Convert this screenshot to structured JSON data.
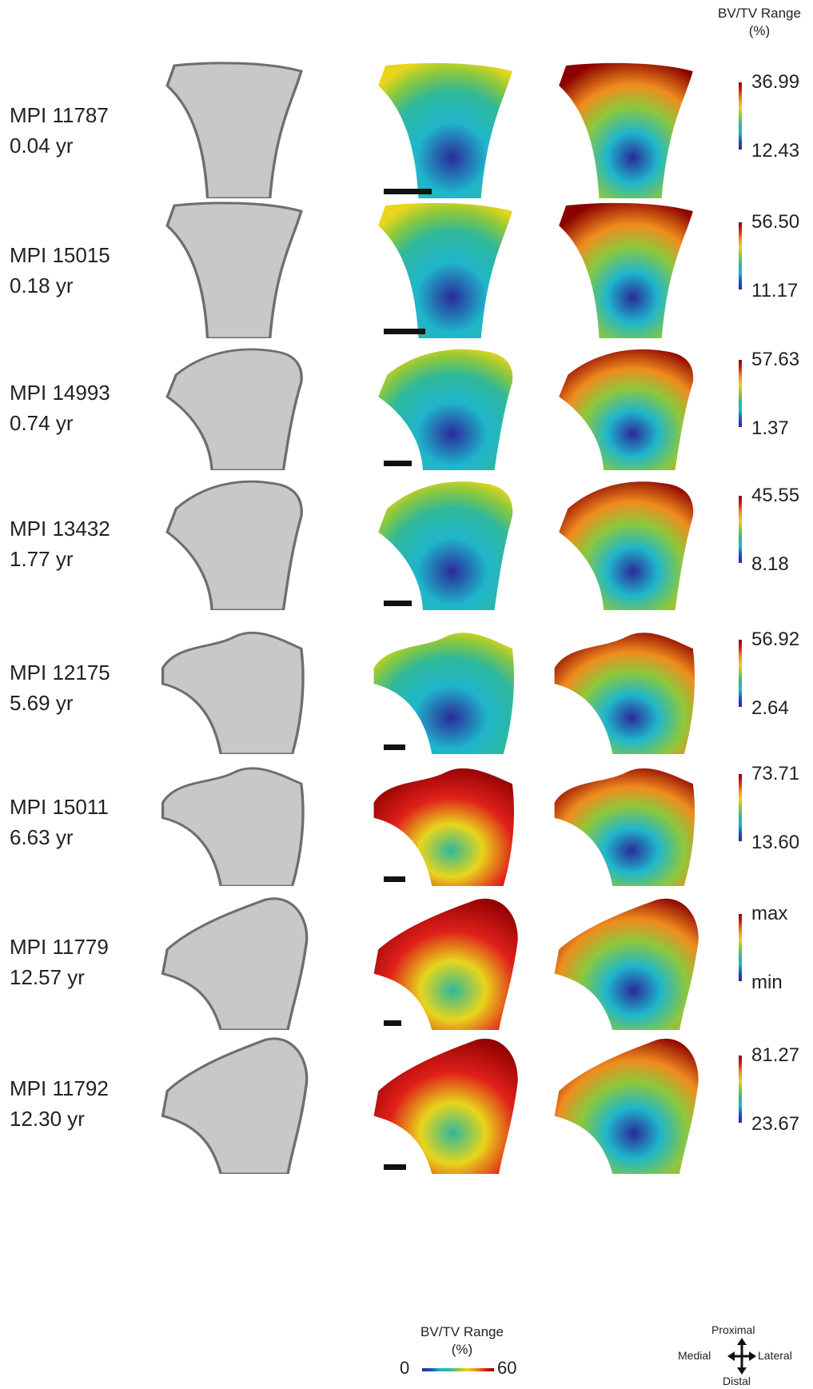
{
  "header": {
    "title_line1": "BV/TV Range",
    "title_line2": "(%)"
  },
  "rows": [
    {
      "specimen": "MPI 11787",
      "age": "0.04 yr",
      "max": "36.99",
      "min": "12.43"
    },
    {
      "specimen": "MPI 15015",
      "age": "0.18 yr",
      "max": "56.50",
      "min": "11.17"
    },
    {
      "specimen": "MPI 14993",
      "age": "0.74 yr",
      "max": "57.63",
      "min": "1.37"
    },
    {
      "specimen": "MPI 13432",
      "age": "1.77 yr",
      "max": "45.55",
      "min": "8.18"
    },
    {
      "specimen": "MPI 12175",
      "age": "5.69 yr",
      "max": "56.92",
      "min": "2.64"
    },
    {
      "specimen": "MPI 15011",
      "age": "6.63 yr",
      "max": "73.71",
      "min": "13.60"
    },
    {
      "specimen": "MPI 11779",
      "age": "12.57 yr",
      "max": "max",
      "min": "min"
    },
    {
      "specimen": "MPI 11792",
      "age": "12.30 yr",
      "max": "81.27",
      "min": "23.67"
    }
  ],
  "footer_legend": {
    "title_line1": "BV/TV Range",
    "title_line2": "(%)",
    "min": "0",
    "max": "60"
  },
  "orientation": {
    "up": "Proximal",
    "down": "Distal",
    "left": "Medial",
    "right": "Lateral"
  },
  "colors": {
    "bone_light": "#c8c8c8",
    "bone_dark": "#6e6e6e",
    "map_low": "#2a2a9a",
    "map_mid": "#1fb6cc",
    "map_high": "#8b0000"
  }
}
